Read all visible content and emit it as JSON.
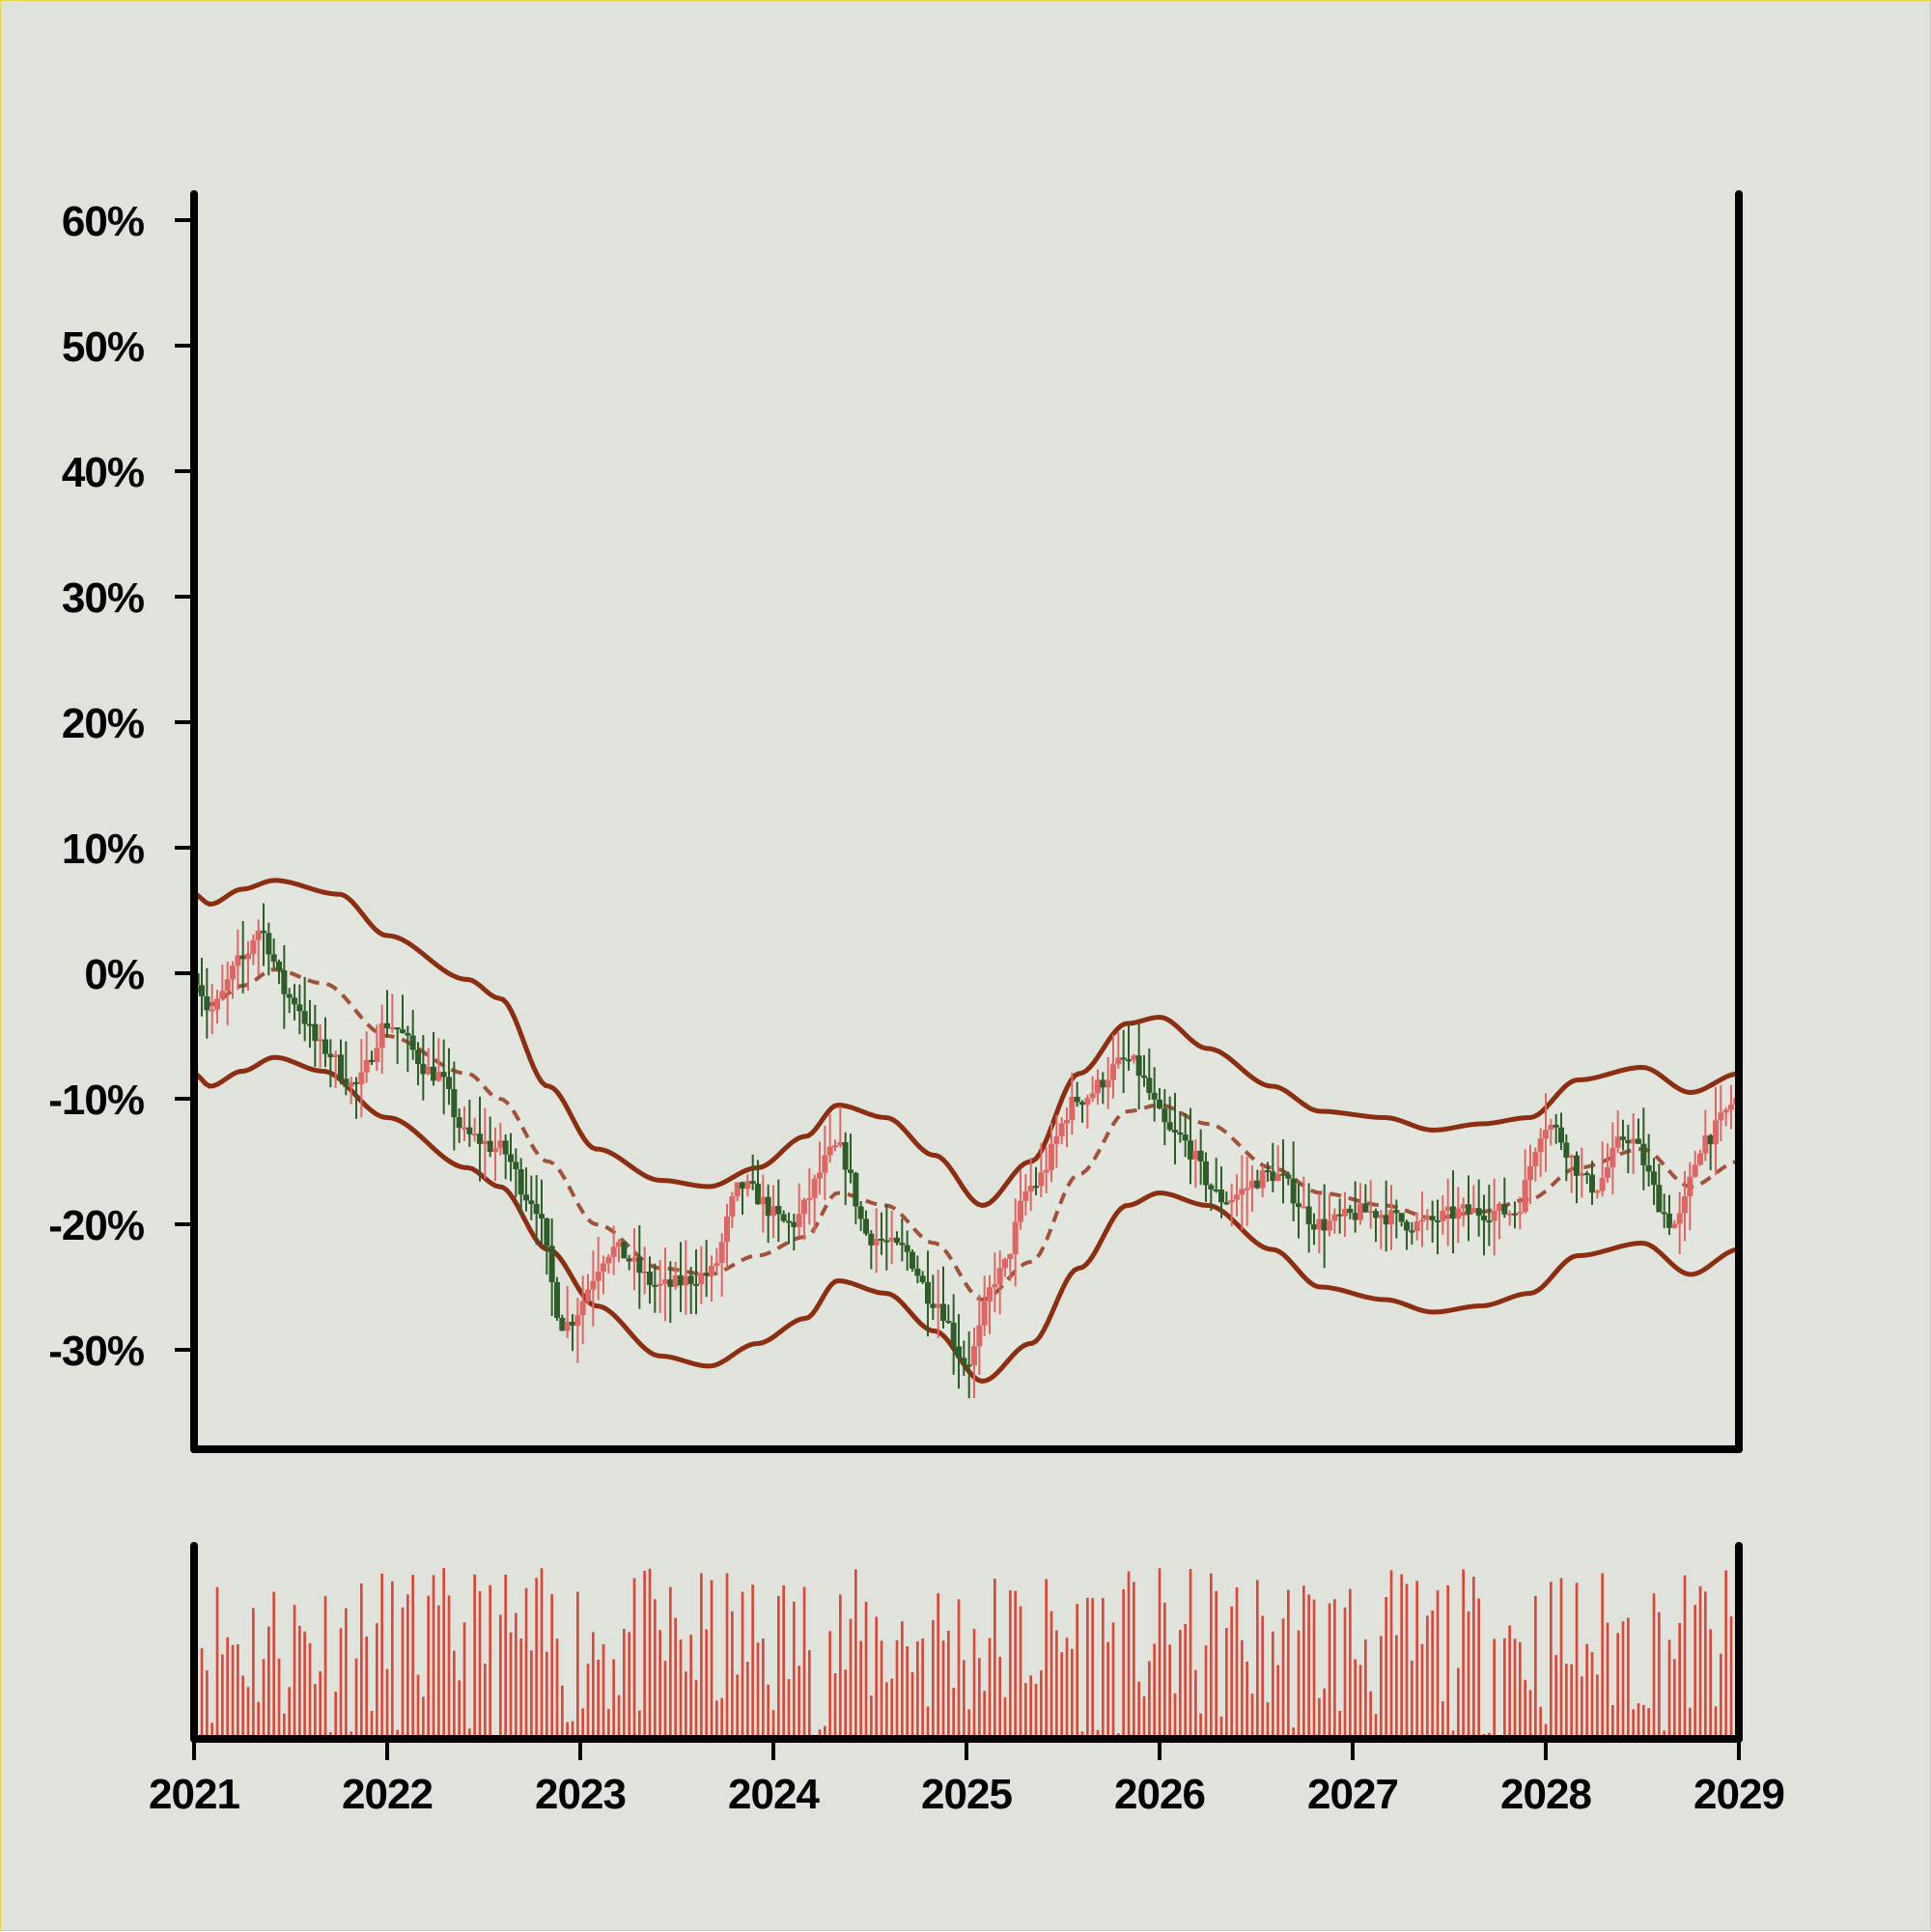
{
  "chart_data": [
    {
      "type": "candlestick",
      "x_axis": {
        "type": "date",
        "ticks": [
          "2021",
          "2022",
          "2023",
          "2024",
          "2025",
          "2026",
          "2027",
          "2028",
          "2029"
        ],
        "range": [
          "2021-01",
          "2029-01"
        ]
      },
      "y_axis": {
        "unit": "%",
        "ticks": [
          "60%",
          "50%",
          "40%",
          "30%",
          "20%",
          "10%",
          "0%",
          "-10%",
          "-20%",
          "-30%"
        ],
        "ylim": [
          -37,
          62
        ]
      },
      "grid": false,
      "colors": {
        "up": "#e06666",
        "down": "#2e5d2a",
        "band": "#8b2e12",
        "mid": "#a0523a",
        "fill": "#dfe3dc"
      },
      "series": {
        "close_curve": [
          [
            "2021-01",
            0
          ],
          [
            "2021-02",
            -3
          ],
          [
            "2021-04",
            1
          ],
          [
            "2021-05",
            3.5
          ],
          [
            "2021-07",
            -2
          ],
          [
            "2021-09",
            -6
          ],
          [
            "2021-11",
            -9
          ],
          [
            "2022-01",
            -4
          ],
          [
            "2022-04",
            -8
          ],
          [
            "2022-06",
            -13
          ],
          [
            "2022-08",
            -14
          ],
          [
            "2022-10",
            -18
          ],
          [
            "2022-12",
            -28
          ],
          [
            "2023-03",
            -22
          ],
          [
            "2023-06",
            -25
          ],
          [
            "2023-09",
            -24
          ],
          [
            "2023-11",
            -17
          ],
          [
            "2024-02",
            -20
          ],
          [
            "2024-05",
            -14
          ],
          [
            "2024-07",
            -21
          ],
          [
            "2024-09",
            -22
          ],
          [
            "2024-11",
            -26
          ],
          [
            "2025-01",
            -31
          ],
          [
            "2025-03",
            -24
          ],
          [
            "2025-05",
            -17
          ],
          [
            "2025-08",
            -10
          ],
          [
            "2025-11",
            -7
          ],
          [
            "2026-02",
            -13
          ],
          [
            "2026-05",
            -18
          ],
          [
            "2026-08",
            -16
          ],
          [
            "2026-11",
            -20
          ],
          [
            "2027-02",
            -19
          ],
          [
            "2027-05",
            -20
          ],
          [
            "2027-08",
            -19
          ],
          [
            "2027-11",
            -19
          ],
          [
            "2028-01",
            -12
          ],
          [
            "2028-04",
            -17
          ],
          [
            "2028-06",
            -13
          ],
          [
            "2028-09",
            -20
          ],
          [
            "2028-11",
            -13
          ],
          [
            "2029-01",
            -10
          ]
        ],
        "upper_band": [
          [
            "2021-01",
            6.3
          ],
          [
            "2021-02",
            5.5
          ],
          [
            "2021-04",
            6.7
          ],
          [
            "2021-06",
            7.4
          ],
          [
            "2021-10",
            6.3
          ],
          [
            "2022-01",
            3
          ],
          [
            "2022-06",
            -0.5
          ],
          [
            "2022-08",
            -2
          ],
          [
            "2022-11",
            -9
          ],
          [
            "2023-02",
            -14
          ],
          [
            "2023-06",
            -16.5
          ],
          [
            "2023-09",
            -17
          ],
          [
            "2023-12",
            -15.5
          ],
          [
            "2024-03",
            -13
          ],
          [
            "2024-05",
            -10.5
          ],
          [
            "2024-08",
            -11.5
          ],
          [
            "2024-11",
            -14.5
          ],
          [
            "2025-02",
            -18.5
          ],
          [
            "2025-05",
            -15
          ],
          [
            "2025-08",
            -8
          ],
          [
            "2025-11",
            -4
          ],
          [
            "2026-01",
            -3.5
          ],
          [
            "2026-04",
            -6
          ],
          [
            "2026-08",
            -9
          ],
          [
            "2026-11",
            -11
          ],
          [
            "2027-03",
            -11.5
          ],
          [
            "2027-06",
            -12.5
          ],
          [
            "2027-09",
            -12
          ],
          [
            "2027-12",
            -11.5
          ],
          [
            "2028-03",
            -8.5
          ],
          [
            "2028-07",
            -7.5
          ],
          [
            "2028-10",
            -9.5
          ],
          [
            "2029-01",
            -8
          ]
        ],
        "middle_band": [
          [
            "2021-01",
            -1
          ],
          [
            "2021-02",
            -2.5
          ],
          [
            "2021-04",
            -1
          ],
          [
            "2021-06",
            0.3
          ],
          [
            "2021-09",
            -0.8
          ],
          [
            "2022-01",
            -5
          ],
          [
            "2022-06",
            -8
          ],
          [
            "2022-08",
            -10
          ],
          [
            "2022-11",
            -15
          ],
          [
            "2023-02",
            -20
          ],
          [
            "2023-06",
            -23.5
          ],
          [
            "2023-09",
            -24
          ],
          [
            "2023-12",
            -22.5
          ],
          [
            "2024-03",
            -21
          ],
          [
            "2024-05",
            -17.5
          ],
          [
            "2024-08",
            -18.5
          ],
          [
            "2024-11",
            -21.5
          ],
          [
            "2025-02",
            -26
          ],
          [
            "2025-05",
            -23
          ],
          [
            "2025-08",
            -16
          ],
          [
            "2025-11",
            -11
          ],
          [
            "2026-01",
            -10.5
          ],
          [
            "2026-04",
            -12
          ],
          [
            "2026-08",
            -15.5
          ],
          [
            "2026-11",
            -17.5
          ],
          [
            "2027-03",
            -18.5
          ],
          [
            "2027-06",
            -19.5
          ],
          [
            "2027-09",
            -19
          ],
          [
            "2027-12",
            -18
          ],
          [
            "2028-03",
            -15.5
          ],
          [
            "2028-07",
            -14
          ],
          [
            "2028-10",
            -17
          ],
          [
            "2029-01",
            -15
          ]
        ],
        "lower_band": [
          [
            "2021-01",
            -8
          ],
          [
            "2021-02",
            -9
          ],
          [
            "2021-04",
            -7.8
          ],
          [
            "2021-06",
            -6.7
          ],
          [
            "2021-09",
            -7.8
          ],
          [
            "2022-01",
            -11.5
          ],
          [
            "2022-06",
            -15.5
          ],
          [
            "2022-08",
            -17
          ],
          [
            "2022-11",
            -22
          ],
          [
            "2023-02",
            -26.5
          ],
          [
            "2023-06",
            -30.5
          ],
          [
            "2023-09",
            -31.3
          ],
          [
            "2023-12",
            -29.5
          ],
          [
            "2024-03",
            -27.5
          ],
          [
            "2024-05",
            -24.5
          ],
          [
            "2024-08",
            -25.5
          ],
          [
            "2024-11",
            -28.5
          ],
          [
            "2025-02",
            -32.5
          ],
          [
            "2025-05",
            -29.5
          ],
          [
            "2025-08",
            -23.5
          ],
          [
            "2025-11",
            -18.5
          ],
          [
            "2026-01",
            -17.5
          ],
          [
            "2026-04",
            -18.5
          ],
          [
            "2026-08",
            -22
          ],
          [
            "2026-11",
            -25
          ],
          [
            "2027-03",
            -26
          ],
          [
            "2027-06",
            -27
          ],
          [
            "2027-09",
            -26.5
          ],
          [
            "2027-12",
            -25.5
          ],
          [
            "2028-03",
            -22.5
          ],
          [
            "2028-07",
            -21.5
          ],
          [
            "2028-10",
            -24
          ],
          [
            "2029-01",
            -22
          ]
        ]
      },
      "volume": {
        "note_bars_count": 300,
        "relative_range": [
          0,
          1
        ]
      }
    }
  ]
}
